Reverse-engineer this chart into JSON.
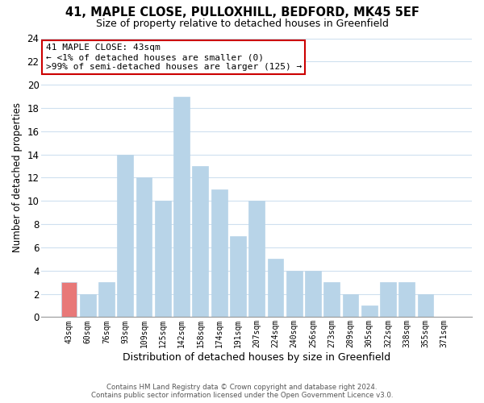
{
  "title": "41, MAPLE CLOSE, PULLOXHILL, BEDFORD, MK45 5EF",
  "subtitle": "Size of property relative to detached houses in Greenfield",
  "xlabel": "Distribution of detached houses by size in Greenfield",
  "ylabel": "Number of detached properties",
  "bar_labels": [
    "43sqm",
    "60sqm",
    "76sqm",
    "93sqm",
    "109sqm",
    "125sqm",
    "142sqm",
    "158sqm",
    "174sqm",
    "191sqm",
    "207sqm",
    "224sqm",
    "240sqm",
    "256sqm",
    "273sqm",
    "289sqm",
    "305sqm",
    "322sqm",
    "338sqm",
    "355sqm",
    "371sqm"
  ],
  "bar_values": [
    3,
    2,
    3,
    14,
    12,
    10,
    19,
    13,
    11,
    7,
    10,
    5,
    4,
    4,
    3,
    2,
    1,
    3,
    3,
    2,
    0
  ],
  "bar_color": "#b8d4e8",
  "highlight_bar_index": 0,
  "highlight_bar_color": "#e87878",
  "ylim": [
    0,
    24
  ],
  "yticks": [
    0,
    2,
    4,
    6,
    8,
    10,
    12,
    14,
    16,
    18,
    20,
    22,
    24
  ],
  "annotation_title": "41 MAPLE CLOSE: 43sqm",
  "annotation_line1": "← <1% of detached houses are smaller (0)",
  "annotation_line2": ">99% of semi-detached houses are larger (125) →",
  "annotation_box_facecolor": "#ffffff",
  "annotation_box_edgecolor": "#cc0000",
  "footer_line1": "Contains HM Land Registry data © Crown copyright and database right 2024.",
  "footer_line2": "Contains public sector information licensed under the Open Government Licence v3.0.",
  "background_color": "#ffffff",
  "grid_color": "#cfe0ef"
}
